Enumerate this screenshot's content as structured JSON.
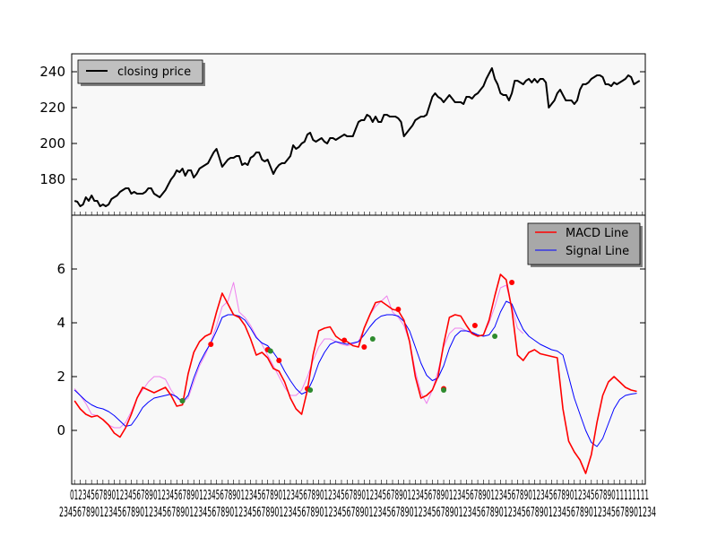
{
  "chart_data": [
    {
      "type": "line",
      "title": "",
      "xlabel": "",
      "ylabel": "",
      "ylim": [
        160,
        250
      ],
      "yticks": [
        180,
        200,
        220,
        240
      ],
      "grid": false,
      "legend_placement": "top-left",
      "series": [
        {
          "name": "closing price",
          "color": "#000000",
          "x": [
            0,
            1,
            2,
            3,
            4,
            5,
            6,
            7,
            8,
            9,
            10,
            11,
            12,
            13,
            14,
            15,
            16,
            17,
            18,
            19,
            20,
            21,
            22,
            23,
            24,
            25,
            26,
            27,
            28,
            29,
            30,
            31,
            32,
            33,
            34,
            35,
            36,
            37,
            38,
            39,
            40,
            41,
            42,
            43,
            44,
            45,
            46,
            47,
            48,
            49,
            50,
            51,
            52,
            53,
            54,
            55,
            56,
            57,
            58,
            59,
            60,
            61,
            62,
            63,
            64,
            65,
            66,
            67,
            68,
            69,
            70,
            71,
            72,
            73,
            74,
            75,
            76,
            77,
            78,
            79,
            80,
            81,
            82,
            83,
            84,
            85,
            86,
            87,
            88,
            89,
            90,
            91,
            92,
            93,
            94,
            95,
            96,
            97,
            98,
            99,
            100,
            101,
            102,
            103,
            104,
            105,
            106,
            107,
            108,
            109,
            110,
            111,
            112,
            113,
            114,
            115,
            116,
            117,
            118,
            119,
            120,
            121,
            122,
            123,
            124,
            125,
            126,
            127,
            128,
            129,
            130,
            131,
            132,
            133,
            134,
            135,
            136,
            137,
            138,
            139,
            140,
            141,
            142,
            143,
            144,
            145,
            146,
            147,
            148,
            149,
            150,
            151,
            152,
            153,
            154,
            155,
            156,
            157,
            158,
            159,
            160,
            161,
            162,
            163,
            164,
            165,
            166,
            167,
            168,
            169,
            170,
            171,
            172,
            173,
            174,
            175,
            176,
            177,
            178,
            179,
            180,
            181,
            182,
            183,
            184,
            185,
            186,
            187,
            188,
            189,
            190,
            191,
            192,
            193,
            194,
            195,
            196,
            197,
            198,
            199
          ],
          "values": [
            168,
            167.5,
            165,
            166,
            170,
            168,
            171,
            168,
            168,
            165,
            166,
            165,
            166,
            169,
            170,
            171,
            173,
            174,
            175,
            175,
            172,
            173,
            172,
            172,
            172,
            173,
            175,
            175,
            172,
            171,
            170,
            172,
            174,
            177,
            180,
            182,
            185,
            184,
            186,
            182,
            185,
            185,
            181,
            183,
            186,
            187,
            188,
            189,
            192,
            195,
            197,
            192,
            187,
            189,
            191,
            192,
            192,
            193,
            193,
            188,
            189,
            188,
            192,
            193,
            195,
            195,
            191,
            190,
            191,
            187,
            183,
            186,
            188,
            189,
            189,
            191,
            193,
            199,
            197,
            198,
            200,
            201,
            205,
            206,
            202,
            201,
            202,
            203,
            201,
            200,
            203,
            203,
            202,
            203,
            204,
            205,
            204,
            204,
            204,
            208,
            212,
            213,
            213,
            216,
            215,
            212,
            215,
            212,
            212,
            216,
            216,
            215,
            215,
            215,
            214,
            212,
            204,
            206,
            208,
            210,
            213,
            214,
            215,
            215,
            216,
            221,
            226,
            228,
            226,
            225,
            223,
            225,
            227,
            225,
            223,
            223,
            223,
            222,
            226,
            226,
            225,
            227,
            228,
            230,
            232,
            236,
            239,
            242,
            236,
            233,
            228,
            227,
            227,
            224,
            228,
            235,
            235,
            234,
            233,
            235,
            236,
            234,
            236,
            234,
            236,
            236,
            234,
            220,
            222,
            224,
            228,
            230,
            227,
            224,
            224,
            224,
            222,
            224,
            230,
            233,
            233,
            234,
            236,
            237,
            238,
            238,
            237,
            233,
            233,
            232,
            234,
            233,
            234,
            235,
            236,
            238,
            237,
            233,
            234,
            235
          ]
        }
      ]
    },
    {
      "type": "line",
      "title": "",
      "xlabel": "",
      "ylabel": "",
      "ylim": [
        -2,
        8
      ],
      "yticks": [
        0,
        2,
        4,
        6
      ],
      "grid": false,
      "legend_placement": "top-right",
      "series": [
        {
          "name": "MACD Line",
          "color": "#ff0000",
          "x": [
            0,
            2,
            4,
            6,
            8,
            10,
            12,
            14,
            16,
            18,
            20,
            22,
            24,
            26,
            28,
            30,
            32,
            34,
            36,
            38,
            40,
            42,
            44,
            46,
            48,
            50,
            52,
            54,
            56,
            58,
            60,
            62,
            64,
            66,
            68,
            70,
            72,
            74,
            76,
            78,
            80,
            82,
            84,
            86,
            88,
            90,
            92,
            94,
            96,
            98,
            100,
            102,
            104,
            106,
            108,
            110,
            112,
            114,
            116,
            118,
            120,
            122,
            124,
            126,
            128,
            130,
            132,
            134,
            136,
            138,
            140,
            142,
            144,
            146,
            148,
            150,
            152,
            154,
            156,
            158,
            160,
            162,
            164,
            166,
            168,
            170,
            172,
            174,
            176,
            178,
            180,
            182,
            184,
            186,
            188,
            190,
            192,
            194,
            196,
            198
          ],
          "values": [
            1.1,
            0.8,
            0.6,
            0.5,
            0.55,
            0.4,
            0.2,
            -0.1,
            -0.25,
            0.1,
            0.6,
            1.2,
            1.6,
            1.5,
            1.4,
            1.5,
            1.6,
            1.3,
            0.9,
            0.95,
            2.1,
            2.9,
            3.3,
            3.5,
            3.6,
            4.4,
            5.1,
            4.7,
            4.3,
            4.2,
            3.9,
            3.4,
            2.8,
            2.9,
            2.7,
            2.3,
            2.2,
            1.8,
            1.2,
            0.8,
            0.6,
            1.5,
            2.8,
            3.7,
            3.8,
            3.85,
            3.5,
            3.35,
            3.3,
            3.15,
            3.1,
            3.8,
            4.3,
            4.75,
            4.8,
            4.65,
            4.5,
            4.45,
            4.1,
            3.3,
            2.0,
            1.2,
            1.3,
            1.5,
            2.0,
            3.2,
            4.2,
            4.3,
            4.25,
            3.9,
            3.6,
            3.5,
            3.55,
            4.1,
            5.0,
            5.8,
            5.6,
            4.5,
            2.8,
            2.6,
            2.9,
            3.0,
            2.85,
            2.8,
            2.75,
            2.7,
            0.8,
            -0.4,
            -0.8,
            -1.1,
            -1.6,
            -0.9,
            0.3,
            1.3,
            1.8,
            2.0,
            1.8,
            1.6,
            1.5,
            1.45
          ]
        },
        {
          "name": "Signal Line",
          "color": "#0000ff",
          "x": [
            0,
            2,
            4,
            6,
            8,
            10,
            12,
            14,
            16,
            18,
            20,
            22,
            24,
            26,
            28,
            30,
            32,
            34,
            36,
            38,
            40,
            42,
            44,
            46,
            48,
            50,
            52,
            54,
            56,
            58,
            60,
            62,
            64,
            66,
            68,
            70,
            72,
            74,
            76,
            78,
            80,
            82,
            84,
            86,
            88,
            90,
            92,
            94,
            96,
            98,
            100,
            102,
            104,
            106,
            108,
            110,
            112,
            114,
            116,
            118,
            120,
            122,
            124,
            126,
            128,
            130,
            132,
            134,
            136,
            138,
            140,
            142,
            144,
            146,
            148,
            150,
            152,
            154,
            156,
            158,
            160,
            162,
            164,
            166,
            168,
            170,
            172,
            174,
            176,
            178,
            180,
            182,
            184,
            186,
            188,
            190,
            192,
            194,
            196,
            198
          ],
          "values": [
            1.5,
            1.3,
            1.1,
            0.95,
            0.85,
            0.8,
            0.7,
            0.55,
            0.35,
            0.15,
            0.2,
            0.5,
            0.85,
            1.05,
            1.2,
            1.25,
            1.3,
            1.35,
            1.25,
            1.05,
            1.3,
            1.95,
            2.5,
            2.9,
            3.25,
            3.7,
            4.2,
            4.3,
            4.3,
            4.25,
            4.1,
            3.8,
            3.45,
            3.25,
            3.15,
            2.9,
            2.6,
            2.2,
            1.85,
            1.55,
            1.35,
            1.45,
            1.9,
            2.5,
            2.9,
            3.2,
            3.3,
            3.25,
            3.2,
            3.25,
            3.3,
            3.55,
            3.85,
            4.1,
            4.25,
            4.3,
            4.3,
            4.25,
            4.05,
            3.7,
            3.1,
            2.5,
            2.05,
            1.85,
            1.95,
            2.4,
            3.05,
            3.5,
            3.7,
            3.7,
            3.65,
            3.55,
            3.5,
            3.55,
            3.85,
            4.4,
            4.8,
            4.7,
            4.2,
            3.75,
            3.5,
            3.35,
            3.2,
            3.1,
            3.0,
            2.95,
            2.8,
            2.0,
            1.2,
            0.6,
            0.0,
            -0.45,
            -0.6,
            -0.3,
            0.25,
            0.8,
            1.15,
            1.3,
            1.35,
            1.38
          ]
        },
        {
          "name": "",
          "color": "#ee82ee",
          "x": [
            0,
            2,
            4,
            6,
            8,
            10,
            12,
            14,
            16,
            18,
            20,
            22,
            24,
            26,
            28,
            30,
            32,
            34,
            36,
            38,
            40,
            42,
            44,
            46,
            48,
            50,
            52,
            54,
            56,
            58,
            60,
            62,
            64,
            66,
            68,
            70,
            72,
            74,
            76,
            78,
            80,
            82,
            84,
            86,
            88,
            90,
            92,
            94,
            96,
            98,
            100,
            102,
            104,
            106,
            108,
            110,
            112,
            114,
            116,
            118,
            120,
            122,
            124,
            126,
            128,
            130,
            132,
            134,
            136,
            138,
            140,
            142,
            144,
            146,
            148,
            150,
            152,
            154,
            156,
            158
          ],
          "values": [
            1.55,
            1.3,
            1.0,
            0.6,
            0.55,
            0.4,
            0.2,
            0.1,
            0.1,
            0.3,
            0.7,
            1.2,
            1.5,
            1.8,
            2.0,
            2.0,
            1.9,
            1.5,
            1.2,
            1.05,
            1.2,
            1.8,
            2.4,
            2.8,
            3.3,
            3.9,
            4.6,
            4.8,
            5.5,
            4.4,
            4.2,
            3.9,
            3.5,
            3.2,
            2.8,
            2.4,
            2.0,
            1.6,
            1.3,
            1.3,
            1.5,
            2.0,
            2.6,
            3.1,
            3.4,
            3.4,
            3.3,
            3.2,
            3.15,
            3.2,
            3.3,
            3.8,
            4.3,
            4.6,
            4.8,
            5.0,
            4.4,
            4.2,
            3.9,
            3.3,
            2.2,
            1.4,
            1.0,
            1.5,
            2.2,
            3.1,
            3.6,
            3.8,
            3.8,
            3.7,
            3.6,
            3.5,
            3.55,
            4.0,
            4.6,
            5.3,
            5.4,
            4.6,
            3.8,
            3.6
          ]
        }
      ],
      "markers": [
        {
          "x": 38,
          "y": 1.1,
          "color": "#ff0000"
        },
        {
          "x": 48,
          "y": 3.2,
          "color": "#ff0000"
        },
        {
          "x": 68,
          "y": 3.0,
          "color": "#ff0000"
        },
        {
          "x": 72,
          "y": 2.6,
          "color": "#ff0000"
        },
        {
          "x": 82,
          "y": 1.55,
          "color": "#ff0000"
        },
        {
          "x": 95,
          "y": 3.35,
          "color": "#ff0000"
        },
        {
          "x": 102,
          "y": 3.1,
          "color": "#ff0000"
        },
        {
          "x": 114,
          "y": 4.5,
          "color": "#ff0000"
        },
        {
          "x": 130,
          "y": 1.55,
          "color": "#ff0000"
        },
        {
          "x": 141,
          "y": 3.9,
          "color": "#ff0000"
        },
        {
          "x": 154,
          "y": 5.5,
          "color": "#ff0000"
        },
        {
          "x": 38,
          "y": 1.1,
          "color": "#2e8b2e"
        },
        {
          "x": 69,
          "y": 2.95,
          "color": "#2e8b2e"
        },
        {
          "x": 83,
          "y": 1.5,
          "color": "#2e8b2e"
        },
        {
          "x": 105,
          "y": 3.4,
          "color": "#2e8b2e"
        },
        {
          "x": 130,
          "y": 1.5,
          "color": "#2e8b2e"
        },
        {
          "x": 148,
          "y": 3.5,
          "color": "#2e8b2e"
        }
      ]
    }
  ],
  "x_axis": {
    "xlim": [
      -1,
      201
    ],
    "tick_top_text": "0123456789012345678901234567890123456789012345678901234567890123456789012345678901234567890123456789012345678901234567890123456789011111111",
    "tick_bottom_text": "2345678901234567890123456789012345678901234567890123456789012345678901234567890123456789012345678901234567890123456789012345678901234"
  },
  "colors": {
    "panel_bg": "#f8f8f8",
    "legend_bg": "#c0c0c0",
    "legend_bg_lower": "#a8a8a8"
  }
}
